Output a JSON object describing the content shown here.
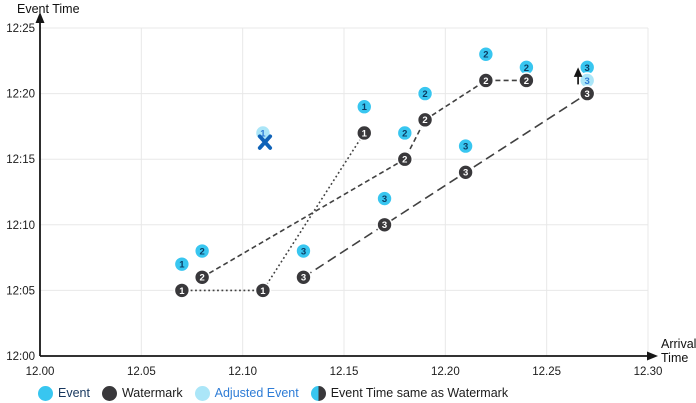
{
  "colors": {
    "event": "#38c6f0",
    "adjusted": "#abe6f8",
    "watermark": "#39383b",
    "event_digit": "#0b3c63",
    "adjusted_digit": "#2e7cd6",
    "watermark_digit": "#ffffff",
    "x_marker": "#1063b8",
    "line": "#414141",
    "grid": "#e8e8e8",
    "axis": "#161616",
    "legend_event_text": "#17375e",
    "legend_adjusted_text": "#2e7cd6",
    "legend_text": "#1c1c1c"
  },
  "chart_data": {
    "type": "scatter",
    "title": "",
    "ylabel": "Event Time",
    "xlabel_lines": [
      "Arrival",
      "Time"
    ],
    "xlim": [
      12.0,
      12.3
    ],
    "ylim_minutes": [
      0,
      25
    ],
    "grid": true,
    "x_ticks": [
      {
        "value": 12.0,
        "label": "12.00"
      },
      {
        "value": 12.05,
        "label": "12.05"
      },
      {
        "value": 12.1,
        "label": "12.10"
      },
      {
        "value": 12.15,
        "label": "12.15"
      },
      {
        "value": 12.2,
        "label": "12.20"
      },
      {
        "value": 12.25,
        "label": "12.25"
      },
      {
        "value": 12.3,
        "label": "12.30"
      }
    ],
    "y_ticks": [
      {
        "minutes": 0,
        "label": "12:00"
      },
      {
        "minutes": 5,
        "label": "12:05"
      },
      {
        "minutes": 10,
        "label": "12:10"
      },
      {
        "minutes": 15,
        "label": "12:15"
      },
      {
        "minutes": 20,
        "label": "12:20"
      },
      {
        "minutes": 25,
        "label": "12:25"
      }
    ],
    "points": [
      {
        "arrival": 12.07,
        "minutes": 7,
        "label": "1",
        "kind": "event"
      },
      {
        "arrival": 12.08,
        "minutes": 8,
        "label": "2",
        "kind": "event"
      },
      {
        "arrival": 12.13,
        "minutes": 8,
        "label": "3",
        "kind": "event"
      },
      {
        "arrival": 12.16,
        "minutes": 19,
        "label": "1",
        "kind": "event"
      },
      {
        "arrival": 12.17,
        "minutes": 12,
        "label": "3",
        "kind": "event"
      },
      {
        "arrival": 12.18,
        "minutes": 17,
        "label": "2",
        "kind": "event"
      },
      {
        "arrival": 12.19,
        "minutes": 20,
        "label": "2",
        "kind": "event"
      },
      {
        "arrival": 12.21,
        "minutes": 16,
        "label": "3",
        "kind": "event"
      },
      {
        "arrival": 12.22,
        "minutes": 23,
        "label": "2",
        "kind": "event"
      },
      {
        "arrival": 12.24,
        "minutes": 22,
        "label": "2",
        "kind": "event"
      },
      {
        "arrival": 12.27,
        "minutes": 22,
        "label": "3",
        "kind": "event"
      },
      {
        "arrival": 12.11,
        "minutes": 17,
        "label": "1",
        "kind": "adjusted"
      },
      {
        "arrival": 12.27,
        "minutes": 21,
        "label": "3",
        "kind": "adjusted"
      },
      {
        "arrival": 12.07,
        "minutes": 5,
        "label": "1",
        "kind": "watermark"
      },
      {
        "arrival": 12.11,
        "minutes": 5,
        "label": "1",
        "kind": "watermark"
      },
      {
        "arrival": 12.16,
        "minutes": 17,
        "label": "1",
        "kind": "watermark"
      },
      {
        "arrival": 12.08,
        "minutes": 6,
        "label": "2",
        "kind": "watermark"
      },
      {
        "arrival": 12.18,
        "minutes": 15,
        "label": "2",
        "kind": "watermark"
      },
      {
        "arrival": 12.19,
        "minutes": 18,
        "label": "2",
        "kind": "watermark"
      },
      {
        "arrival": 12.22,
        "minutes": 21,
        "label": "2",
        "kind": "watermark"
      },
      {
        "arrival": 12.24,
        "minutes": 21,
        "label": "2",
        "kind": "watermark"
      },
      {
        "arrival": 12.13,
        "minutes": 6,
        "label": "3",
        "kind": "watermark"
      },
      {
        "arrival": 12.17,
        "minutes": 10,
        "label": "3",
        "kind": "watermark"
      },
      {
        "arrival": 12.21,
        "minutes": 14,
        "label": "3",
        "kind": "watermark"
      },
      {
        "arrival": 12.27,
        "minutes": 20,
        "label": "3",
        "kind": "watermark"
      }
    ],
    "lines": [
      {
        "name": "1",
        "style": "dotted",
        "points": [
          [
            12.07,
            5
          ],
          [
            12.11,
            5
          ],
          [
            12.16,
            17
          ]
        ]
      },
      {
        "name": "2",
        "style": "dashed",
        "points": [
          [
            12.08,
            6
          ],
          [
            12.18,
            15
          ],
          [
            12.19,
            18
          ],
          [
            12.22,
            21
          ],
          [
            12.24,
            21
          ]
        ]
      },
      {
        "name": "3",
        "style": "longdash",
        "points": [
          [
            12.13,
            6
          ],
          [
            12.17,
            10
          ],
          [
            12.21,
            14
          ],
          [
            12.27,
            20
          ]
        ]
      }
    ],
    "annotations": {
      "x_marker": {
        "arrival": 12.111,
        "minutes": 16.3
      },
      "up_arrow": {
        "arrival": 12.2655,
        "from_minutes": 20.7,
        "to_minutes": 22.0
      }
    }
  },
  "legend": {
    "items": [
      {
        "label": "Event",
        "kind": "event"
      },
      {
        "label": "Watermark",
        "kind": "watermark"
      },
      {
        "label": "Adjusted Event",
        "kind": "adjusted"
      },
      {
        "label": "Event Time same as Watermark",
        "kind": "half"
      }
    ]
  }
}
